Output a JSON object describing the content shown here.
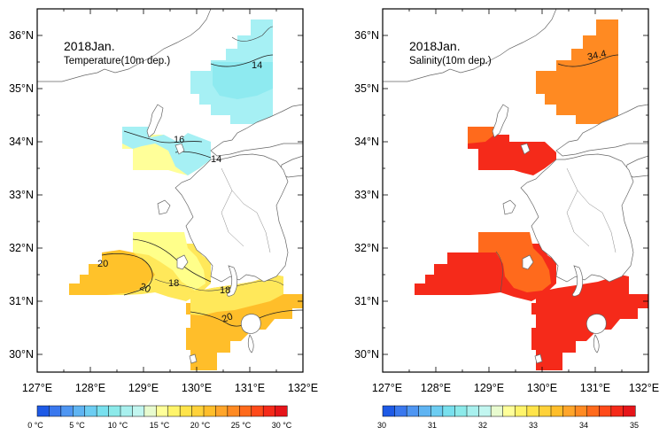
{
  "maps": [
    {
      "title": "2018Jan.",
      "subtitle": "Temperature(10m dep.)",
      "lat_labels": [
        "36°N",
        "35°N",
        "34°N",
        "33°N",
        "32°N",
        "31°N",
        "30°N"
      ],
      "lon_labels": [
        "127°E",
        "128°E",
        "129°E",
        "130°E",
        "131°E",
        "132°E"
      ],
      "contour_labels": [
        "14",
        "16",
        "14",
        "20",
        "20",
        "18",
        "18",
        "20"
      ],
      "colorbar": {
        "labels": [
          "0 °C",
          "5 °C",
          "10 °C",
          "15 °C",
          "20 °C",
          "25 °C",
          "30 °C"
        ],
        "min": 0,
        "max": 32,
        "colors": [
          "#1e5ae6",
          "#3a78ee",
          "#4f96f2",
          "#5fb4f2",
          "#6ccdf2",
          "#78e0ee",
          "#8ceaea",
          "#a8f0ee",
          "#c2f6f0",
          "#e8fbcf",
          "#ffff99",
          "#fff46a",
          "#ffe44a",
          "#ffd23a",
          "#ffbe2a",
          "#ffa52a",
          "#ff8a22",
          "#ff6a1c",
          "#ff4a1a",
          "#f52a1a",
          "#e6151a"
        ]
      },
      "regions": [
        {
          "name": "tsushima-strait-north",
          "value": 14
        },
        {
          "name": "tsushima-strait-south",
          "value": 16.5
        },
        {
          "name": "west-kyushu",
          "value": 19.5
        },
        {
          "name": "south-kyushu",
          "value": 20.5
        }
      ]
    },
    {
      "title": "2018Jan.",
      "subtitle": "Salinity(10m dep.)",
      "lat_labels": [
        "36°N",
        "35°N",
        "34°N",
        "33°N",
        "32°N",
        "31°N",
        "30°N"
      ],
      "lon_labels": [
        "127°E",
        "128°E",
        "129°E",
        "130°E",
        "131°E",
        "132°E"
      ],
      "contour_labels": [
        "34.4"
      ],
      "colorbar": {
        "labels": [
          "30",
          "31",
          "32",
          "33",
          "34",
          "35"
        ],
        "min": 30,
        "max": 35,
        "colors": [
          "#1e5ae6",
          "#3a78ee",
          "#4f96f2",
          "#5fb4f2",
          "#6ccdf2",
          "#78e0ee",
          "#8ceaea",
          "#a8f0ee",
          "#c2f6f0",
          "#e8fbcf",
          "#ffff99",
          "#fff46a",
          "#ffe44a",
          "#ffd23a",
          "#ffbe2a",
          "#ffa52a",
          "#ff8a22",
          "#ff6a1c",
          "#ff4a1a",
          "#f52a1a",
          "#e6151a"
        ]
      },
      "regions": [
        {
          "name": "tsushima-strait-north",
          "value": 34.4
        },
        {
          "name": "tsushima-strait-south",
          "value": 34.7
        },
        {
          "name": "west-kyushu",
          "value": 34.5
        },
        {
          "name": "south-kyushu",
          "value": 34.7
        }
      ]
    }
  ]
}
